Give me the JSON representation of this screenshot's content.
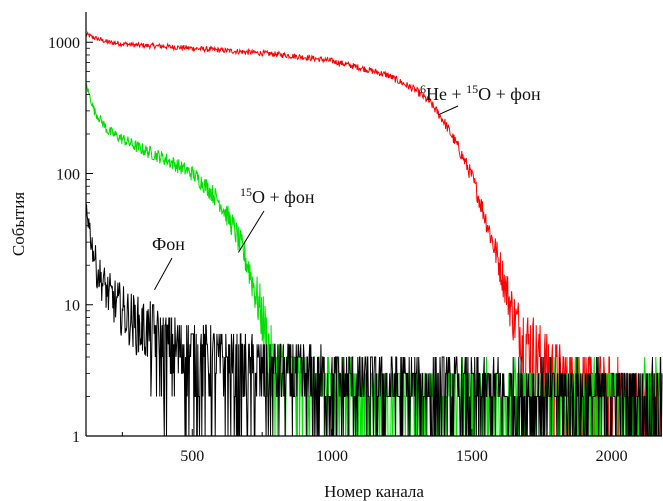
{
  "chart_data": {
    "type": "line",
    "title": "",
    "xlabel": "Номер канала",
    "ylabel": "События",
    "xlim": [
      120,
      2180
    ],
    "ylim": [
      1,
      1700
    ],
    "yscale": "log",
    "grid": false,
    "x_ticks": [
      500,
      1000,
      1500,
      2000
    ],
    "x_tick_labels": [
      "500",
      "1000",
      "1500",
      "2000"
    ],
    "y_ticks": [
      1,
      10,
      100,
      1000
    ],
    "y_tick_labels": [
      "1",
      "10",
      "100",
      "1000"
    ],
    "series": [
      {
        "color": "#ff0000",
        "x": [
          120,
          150,
          200,
          300,
          400,
          500,
          600,
          700,
          800,
          900,
          1000,
          1100,
          1200,
          1300,
          1350,
          1400,
          1450,
          1500,
          1550,
          1600,
          1650,
          1700,
          1750,
          1800,
          1850,
          1900,
          2000,
          2100,
          2180
        ],
        "values": [
          1150,
          1080,
          1000,
          950,
          930,
          900,
          870,
          840,
          810,
          770,
          720,
          640,
          560,
          430,
          350,
          250,
          160,
          95,
          45,
          20,
          8,
          5,
          4,
          3,
          2.5,
          2.5,
          2,
          2,
          2
        ]
      },
      {
        "color": "#00e000",
        "x": [
          120,
          150,
          200,
          300,
          400,
          500,
          550,
          600,
          650,
          700,
          750,
          780,
          800,
          900,
          1000,
          1200,
          1400,
          1600,
          1800,
          2000,
          2180
        ],
        "values": [
          480,
          300,
          210,
          160,
          130,
          100,
          80,
          60,
          38,
          20,
          8,
          4,
          3,
          2.5,
          2.2,
          2,
          2,
          2,
          2,
          2,
          2
        ]
      },
      {
        "color": "#000000",
        "x": [
          120,
          140,
          160,
          200,
          250,
          300,
          350,
          400,
          500,
          600,
          700,
          800,
          900,
          1000,
          1200,
          1400,
          1600,
          1800,
          2000,
          2180
        ],
        "values": [
          60,
          30,
          18,
          12,
          9,
          7,
          6,
          5,
          4.2,
          3.6,
          3.2,
          3,
          2.8,
          2.6,
          2.4,
          2.2,
          2.1,
          2,
          2,
          2
        ]
      }
    ],
    "annotations": [
      {
        "text": "Фон",
        "arrow_to": [
          365,
          13
        ]
      },
      {
        "text_sup": "15",
        "text": "O + фон",
        "arrow_to": [
          665,
          25
        ]
      },
      {
        "text_sup1": "6",
        "text1": "He + ",
        "text_sup2": "15",
        "text2": "O + фон",
        "arrow_to": [
          1380,
          280
        ]
      }
    ]
  }
}
